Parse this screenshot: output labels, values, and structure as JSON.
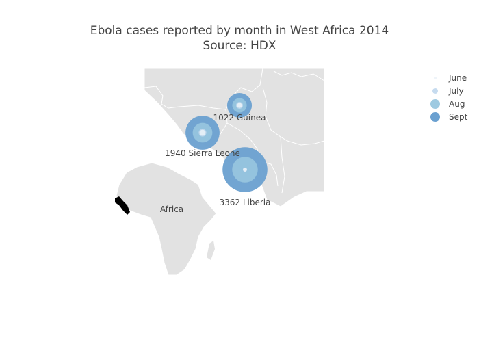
{
  "title": [
    "Ebola cases reported by month in West Africa 2014",
    "Source: HDX"
  ],
  "inset_label": "Africa",
  "legend": [
    {
      "name": "June",
      "color": "#eef4f9"
    },
    {
      "name": "July",
      "color": "#c6dbef"
    },
    {
      "name": "Aug",
      "color": "#9ecae1"
    },
    {
      "name": "Sept",
      "color": "#6aa0d0"
    }
  ],
  "chart_data": {
    "type": "bubble-map",
    "title": "Ebola cases reported by month in West Africa 2014",
    "subtitle": "Source: HDX",
    "months": [
      "June",
      "July",
      "Aug",
      "Sept"
    ],
    "countries": [
      {
        "name": "Guinea",
        "label": "1022 Guinea",
        "cases": [
          40,
          80,
          350,
          1022
        ]
      },
      {
        "name": "Sierra Leone",
        "label": "1940 Sierra Leone",
        "cases": [
          60,
          100,
          650,
          1940
        ]
      },
      {
        "name": "Liberia",
        "label": "3362 Liberia",
        "cases": [
          25,
          30,
          1100,
          3362
        ]
      }
    ]
  },
  "colors": {
    "land": "#e2e2e2",
    "border": "#ffffff",
    "highlight": "#000000"
  }
}
